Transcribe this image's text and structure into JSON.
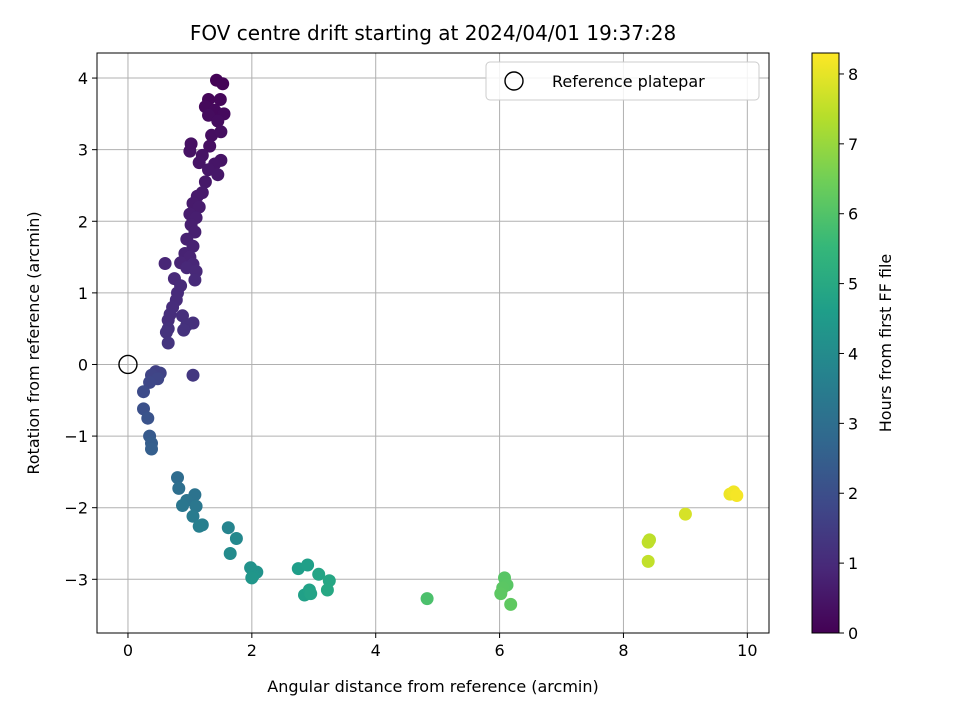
{
  "chart_data": {
    "type": "scatter",
    "title": "FOV centre drift starting at 2024/04/01 19:37:28",
    "xlabel": "Angular distance from reference (arcmin)",
    "ylabel": "Rotation from reference (arcmin)",
    "xlim": [
      -0.5,
      10.35
    ],
    "ylim": [
      -3.75,
      4.35
    ],
    "xticks": [
      0,
      2,
      4,
      6,
      8,
      10
    ],
    "yticks": [
      -3,
      -2,
      -1,
      0,
      1,
      2,
      3,
      4
    ],
    "grid": true,
    "legend": {
      "placement": "top-right",
      "entries": [
        "Reference platepar"
      ]
    },
    "reference_point": {
      "x": 0,
      "y": 0,
      "marker": "open-circle"
    },
    "colorbar": {
      "label": "Hours from first FF file",
      "range": [
        0,
        8.3
      ],
      "ticks": [
        0,
        1,
        2,
        3,
        4,
        5,
        6,
        7,
        8
      ],
      "colormap": [
        "#440154",
        "#482878",
        "#3e4989",
        "#31688e",
        "#26828e",
        "#1f9e89",
        "#35b779",
        "#6ece58",
        "#b5de2b",
        "#fde725"
      ]
    },
    "series": [
      {
        "points": [
          {
            "x": 1.43,
            "y": 3.97,
            "t": 0.05
          },
          {
            "x": 1.53,
            "y": 3.92,
            "t": 0.08
          },
          {
            "x": 1.3,
            "y": 3.7,
            "t": 0.12
          },
          {
            "x": 1.49,
            "y": 3.7,
            "t": 0.15
          },
          {
            "x": 1.25,
            "y": 3.6,
            "t": 0.18
          },
          {
            "x": 1.4,
            "y": 3.55,
            "t": 0.2
          },
          {
            "x": 1.55,
            "y": 3.5,
            "t": 0.22
          },
          {
            "x": 1.3,
            "y": 3.48,
            "t": 0.25
          },
          {
            "x": 1.45,
            "y": 3.4,
            "t": 0.27
          },
          {
            "x": 1.35,
            "y": 3.2,
            "t": 0.3
          },
          {
            "x": 1.5,
            "y": 3.25,
            "t": 0.32
          },
          {
            "x": 1.32,
            "y": 3.05,
            "t": 0.35
          },
          {
            "x": 1.02,
            "y": 3.08,
            "t": 0.38
          },
          {
            "x": 1.0,
            "y": 2.98,
            "t": 0.4
          },
          {
            "x": 1.2,
            "y": 2.92,
            "t": 0.42
          },
          {
            "x": 1.5,
            "y": 2.85,
            "t": 0.44
          },
          {
            "x": 1.15,
            "y": 2.82,
            "t": 0.46
          },
          {
            "x": 1.4,
            "y": 2.8,
            "t": 0.48
          },
          {
            "x": 1.3,
            "y": 2.72,
            "t": 0.5
          },
          {
            "x": 1.45,
            "y": 2.65,
            "t": 0.52
          },
          {
            "x": 1.25,
            "y": 2.55,
            "t": 0.55
          },
          {
            "x": 1.2,
            "y": 2.4,
            "t": 0.58
          },
          {
            "x": 1.12,
            "y": 2.35,
            "t": 0.6
          },
          {
            "x": 1.05,
            "y": 2.25,
            "t": 0.62
          },
          {
            "x": 1.15,
            "y": 2.2,
            "t": 0.64
          },
          {
            "x": 1.0,
            "y": 2.1,
            "t": 0.66
          },
          {
            "x": 1.1,
            "y": 2.05,
            "t": 0.68
          },
          {
            "x": 1.02,
            "y": 1.95,
            "t": 0.7
          },
          {
            "x": 1.08,
            "y": 1.85,
            "t": 0.72
          },
          {
            "x": 0.95,
            "y": 1.75,
            "t": 0.75
          },
          {
            "x": 1.05,
            "y": 1.65,
            "t": 0.78
          },
          {
            "x": 0.92,
            "y": 1.55,
            "t": 0.8
          },
          {
            "x": 1.0,
            "y": 1.5,
            "t": 0.82
          },
          {
            "x": 0.85,
            "y": 1.42,
            "t": 0.85
          },
          {
            "x": 0.6,
            "y": 1.41,
            "t": 0.88
          },
          {
            "x": 1.05,
            "y": 1.4,
            "t": 0.9
          },
          {
            "x": 0.95,
            "y": 1.35,
            "t": 0.92
          },
          {
            "x": 1.1,
            "y": 1.3,
            "t": 0.94
          },
          {
            "x": 0.75,
            "y": 1.2,
            "t": 0.96
          },
          {
            "x": 1.08,
            "y": 1.18,
            "t": 0.98
          },
          {
            "x": 0.85,
            "y": 1.1,
            "t": 1.0
          },
          {
            "x": 0.8,
            "y": 1.0,
            "t": 1.02
          },
          {
            "x": 0.78,
            "y": 0.9,
            "t": 1.04
          },
          {
            "x": 0.72,
            "y": 0.8,
            "t": 1.06
          },
          {
            "x": 0.68,
            "y": 0.7,
            "t": 1.08
          },
          {
            "x": 0.65,
            "y": 0.62,
            "t": 1.1
          },
          {
            "x": 0.88,
            "y": 0.68,
            "t": 1.12
          },
          {
            "x": 1.05,
            "y": 0.58,
            "t": 1.14
          },
          {
            "x": 0.95,
            "y": 0.55,
            "t": 1.16
          },
          {
            "x": 0.65,
            "y": 0.5,
            "t": 1.18
          },
          {
            "x": 0.9,
            "y": 0.48,
            "t": 1.2
          },
          {
            "x": 0.62,
            "y": 0.45,
            "t": 1.22
          },
          {
            "x": 0.65,
            "y": 0.3,
            "t": 1.25
          },
          {
            "x": 1.05,
            "y": -0.15,
            "t": 1.35
          },
          {
            "x": 0.45,
            "y": -0.1,
            "t": 1.6
          },
          {
            "x": 0.52,
            "y": -0.12,
            "t": 1.65
          },
          {
            "x": 0.38,
            "y": -0.15,
            "t": 1.7
          },
          {
            "x": 0.48,
            "y": -0.2,
            "t": 1.75
          },
          {
            "x": 0.35,
            "y": -0.25,
            "t": 1.8
          },
          {
            "x": 0.25,
            "y": -0.38,
            "t": 1.9
          },
          {
            "x": 0.25,
            "y": -0.62,
            "t": 2.05
          },
          {
            "x": 0.32,
            "y": -0.75,
            "t": 2.15
          },
          {
            "x": 0.35,
            "y": -1.0,
            "t": 2.35
          },
          {
            "x": 0.38,
            "y": -1.1,
            "t": 2.45
          },
          {
            "x": 0.38,
            "y": -1.18,
            "t": 2.5
          },
          {
            "x": 0.8,
            "y": -1.58,
            "t": 2.9
          },
          {
            "x": 0.82,
            "y": -1.73,
            "t": 3.0
          },
          {
            "x": 1.08,
            "y": -1.82,
            "t": 3.15
          },
          {
            "x": 0.95,
            "y": -1.9,
            "t": 3.2
          },
          {
            "x": 0.88,
            "y": -1.97,
            "t": 3.25
          },
          {
            "x": 1.1,
            "y": -1.98,
            "t": 3.3
          },
          {
            "x": 1.05,
            "y": -2.12,
            "t": 3.45
          },
          {
            "x": 1.2,
            "y": -2.24,
            "t": 3.55
          },
          {
            "x": 1.15,
            "y": -2.26,
            "t": 3.6
          },
          {
            "x": 1.62,
            "y": -2.28,
            "t": 3.75
          },
          {
            "x": 1.75,
            "y": -2.43,
            "t": 3.9
          },
          {
            "x": 1.65,
            "y": -2.64,
            "t": 4.0
          },
          {
            "x": 1.98,
            "y": -2.84,
            "t": 4.2
          },
          {
            "x": 2.08,
            "y": -2.9,
            "t": 4.25
          },
          {
            "x": 2.02,
            "y": -2.95,
            "t": 4.3
          },
          {
            "x": 2.0,
            "y": -2.98,
            "t": 4.35
          },
          {
            "x": 2.75,
            "y": -2.85,
            "t": 4.6
          },
          {
            "x": 2.9,
            "y": -2.8,
            "t": 4.65
          },
          {
            "x": 2.85,
            "y": -3.22,
            "t": 4.7
          },
          {
            "x": 2.93,
            "y": -3.15,
            "t": 4.75
          },
          {
            "x": 2.95,
            "y": -3.2,
            "t": 4.8
          },
          {
            "x": 3.08,
            "y": -2.93,
            "t": 4.85
          },
          {
            "x": 3.25,
            "y": -3.02,
            "t": 4.9
          },
          {
            "x": 3.22,
            "y": -3.15,
            "t": 4.95
          },
          {
            "x": 4.83,
            "y": -3.27,
            "t": 5.9
          },
          {
            "x": 6.08,
            "y": -2.98,
            "t": 6.1
          },
          {
            "x": 6.12,
            "y": -3.08,
            "t": 6.12
          },
          {
            "x": 6.05,
            "y": -3.12,
            "t": 6.15
          },
          {
            "x": 6.02,
            "y": -3.2,
            "t": 6.18
          },
          {
            "x": 6.18,
            "y": -3.35,
            "t": 6.22
          },
          {
            "x": 8.42,
            "y": -2.45,
            "t": 7.45
          },
          {
            "x": 8.4,
            "y": -2.48,
            "t": 7.5
          },
          {
            "x": 8.4,
            "y": -2.75,
            "t": 7.55
          },
          {
            "x": 9.0,
            "y": -2.09,
            "t": 7.8
          },
          {
            "x": 9.72,
            "y": -1.81,
            "t": 8.1
          },
          {
            "x": 9.78,
            "y": -1.78,
            "t": 8.15
          },
          {
            "x": 9.83,
            "y": -1.83,
            "t": 8.2
          }
        ]
      }
    ]
  }
}
